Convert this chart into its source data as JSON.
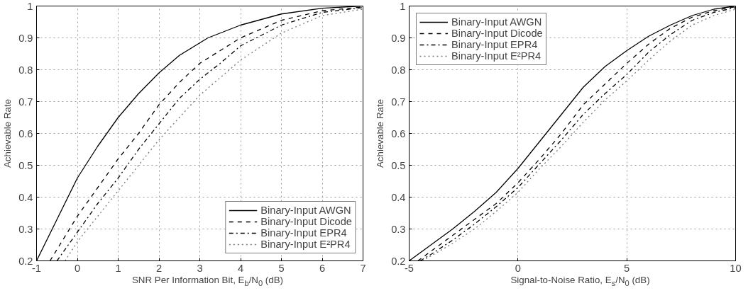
{
  "chart_data": [
    {
      "type": "line",
      "xlabel": "SNR Per Information Bit, E$_{b}$/N$_{0}$ (dB)",
      "ylabel": "Achievable Rate",
      "xlim": [
        -1,
        7
      ],
      "ylim": [
        0.2,
        1
      ],
      "xticks": [
        -1,
        0,
        1,
        2,
        3,
        4,
        5,
        6,
        7
      ],
      "yticks": [
        0.2,
        0.3,
        0.4,
        0.5,
        0.6,
        0.7,
        0.8,
        0.9,
        1
      ],
      "grid": true,
      "legend": "bottom right",
      "series": [
        {
          "name": "Binary-Input AWGN",
          "color": "#000000",
          "line_style": "solid",
          "x": [
            -1,
            -0.5,
            0,
            0.5,
            1,
            1.5,
            2,
            2.5,
            3.2,
            4,
            5,
            6,
            7
          ],
          "values": [
            0.2,
            0.33,
            0.46,
            0.56,
            0.65,
            0.725,
            0.79,
            0.845,
            0.9,
            0.94,
            0.975,
            0.993,
            1.0
          ]
        },
        {
          "name": "Binary-Input Dicode",
          "color": "#000000",
          "line_style": "dashed",
          "x": [
            -0.67,
            0,
            0.5,
            1,
            1.5,
            2,
            2.5,
            3,
            4,
            5,
            6,
            7
          ],
          "values": [
            0.2,
            0.34,
            0.43,
            0.52,
            0.6,
            0.69,
            0.76,
            0.82,
            0.9,
            0.955,
            0.985,
            0.997
          ]
        },
        {
          "name": "Binary-Input EPR4",
          "color": "#000000",
          "line_style": "dashdot",
          "x": [
            -0.5,
            0,
            0.5,
            1,
            1.5,
            2,
            2.5,
            3,
            3.5,
            4,
            5,
            6,
            7
          ],
          "values": [
            0.2,
            0.29,
            0.38,
            0.46,
            0.55,
            0.63,
            0.71,
            0.77,
            0.82,
            0.875,
            0.94,
            0.98,
            0.995
          ]
        },
        {
          "name": "Binary-Input E²PR4",
          "color": "#777777",
          "line_style": "dotted",
          "x": [
            -0.3,
            0,
            0.5,
            1,
            1.5,
            2,
            2.5,
            3,
            4,
            5,
            6,
            7
          ],
          "values": [
            0.2,
            0.26,
            0.34,
            0.42,
            0.5,
            0.58,
            0.65,
            0.72,
            0.83,
            0.915,
            0.97,
            0.99
          ]
        }
      ]
    },
    {
      "type": "line",
      "xlabel": "Signal-to-Noise Ratio, E$_{s}$/N$_{0}$ (dB)",
      "ylabel": "Achievable Rate",
      "xlim": [
        -5,
        10
      ],
      "ylim": [
        0.2,
        1
      ],
      "xticks": [
        -5,
        0,
        5,
        10
      ],
      "yticks": [
        0.2,
        0.3,
        0.4,
        0.5,
        0.6,
        0.7,
        0.8,
        0.9,
        1
      ],
      "grid": true,
      "legend": "top left",
      "series": [
        {
          "name": "Binary-Input AWGN",
          "color": "#000000",
          "line_style": "solid",
          "x": [
            -5,
            -4,
            -3,
            -2,
            -1,
            0,
            1,
            2,
            3,
            4,
            5,
            6,
            7,
            8,
            9,
            10
          ],
          "values": [
            0.2,
            0.25,
            0.3,
            0.355,
            0.415,
            0.49,
            0.575,
            0.66,
            0.745,
            0.81,
            0.86,
            0.905,
            0.94,
            0.97,
            0.99,
            1.0
          ]
        },
        {
          "name": "Binary-Input Dicode",
          "color": "#000000",
          "line_style": "dashed",
          "x": [
            -4.6,
            -4,
            -3,
            -2,
            -1,
            0,
            1,
            2,
            3,
            4,
            5,
            6,
            7,
            8,
            9,
            10
          ],
          "values": [
            0.2,
            0.23,
            0.28,
            0.33,
            0.38,
            0.445,
            0.52,
            0.6,
            0.69,
            0.755,
            0.82,
            0.88,
            0.93,
            0.965,
            0.985,
            0.998
          ]
        },
        {
          "name": "Binary-Input EPR4",
          "color": "#000000",
          "line_style": "dashdot",
          "x": [
            -4.5,
            -4,
            -3,
            -2,
            -1,
            0,
            1,
            2,
            3,
            4,
            5,
            6,
            7,
            8,
            9,
            10
          ],
          "values": [
            0.2,
            0.22,
            0.265,
            0.315,
            0.37,
            0.43,
            0.505,
            0.58,
            0.66,
            0.725,
            0.785,
            0.855,
            0.91,
            0.955,
            0.98,
            0.995
          ]
        },
        {
          "name": "Binary-Input E²PR4",
          "color": "#777777",
          "line_style": "dotted",
          "x": [
            -4.4,
            -4,
            -3,
            -2,
            -1,
            0,
            1,
            2,
            3,
            4,
            5,
            6,
            7,
            8,
            9,
            10
          ],
          "values": [
            0.2,
            0.215,
            0.255,
            0.3,
            0.355,
            0.415,
            0.49,
            0.56,
            0.635,
            0.705,
            0.765,
            0.83,
            0.89,
            0.94,
            0.97,
            0.99
          ]
        }
      ]
    }
  ]
}
